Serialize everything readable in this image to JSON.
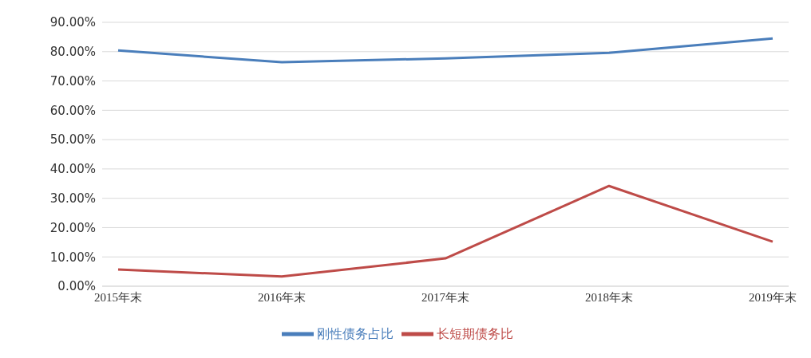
{
  "chart_data": {
    "type": "line",
    "categories": [
      "2015年末",
      "2016年末",
      "2017年末",
      "2018年末",
      "2019年末"
    ],
    "series": [
      {
        "name": "刚性债务占比",
        "color": "#4a7ebb",
        "values": [
          80.4,
          76.4,
          77.7,
          79.6,
          84.5
        ]
      },
      {
        "name": "长短期债务比",
        "color": "#be4b48",
        "values": [
          5.7,
          3.3,
          9.5,
          34.2,
          15.2
        ]
      }
    ],
    "ylim": [
      0,
      90
    ],
    "yticks": [
      {
        "value": 0,
        "label": "0.00%"
      },
      {
        "value": 10,
        "label": "10.00%"
      },
      {
        "value": 20,
        "label": "20.00%"
      },
      {
        "value": 30,
        "label": "30.00%"
      },
      {
        "value": 40,
        "label": "40.00%"
      },
      {
        "value": 50,
        "label": "50.00%"
      },
      {
        "value": 60,
        "label": "60.00%"
      },
      {
        "value": 70,
        "label": "70.00%"
      },
      {
        "value": 80,
        "label": "80.00%"
      },
      {
        "value": 90,
        "label": "90.00%"
      }
    ],
    "grid": "y",
    "legend": "bottom",
    "marker": "none",
    "line_style": "solid"
  }
}
